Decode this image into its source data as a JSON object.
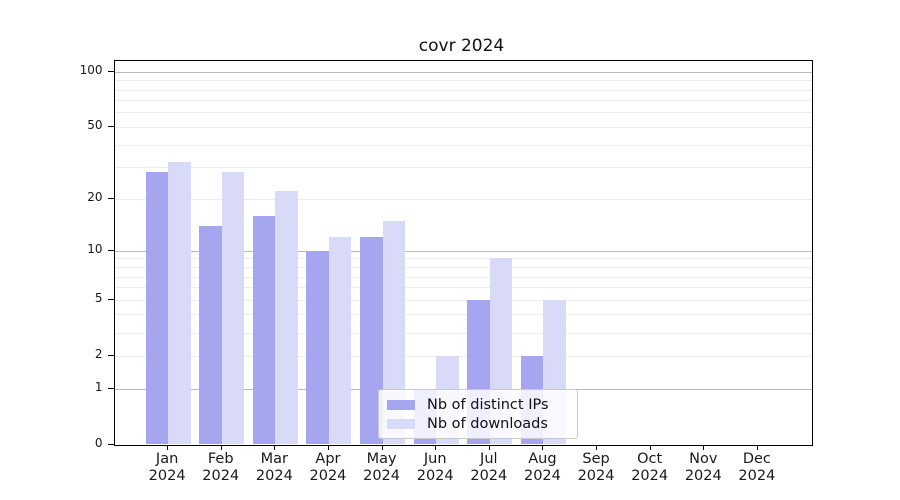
{
  "title": "covr 2024",
  "colors": {
    "distinct_ips": "#a6a6f0",
    "downloads": "#d9d9f8",
    "major_gridline": "#b9b9b9",
    "minor_gridline": "#ededed",
    "axis": "#000000"
  },
  "legend": {
    "items": [
      {
        "key": "distinct_ips",
        "label": "Nb of distinct IPs"
      },
      {
        "key": "downloads",
        "label": "Nb of downloads"
      }
    ]
  },
  "chart_data": {
    "type": "bar",
    "title": "covr 2024",
    "categories": [
      "Jan 2024",
      "Feb 2024",
      "Mar 2024",
      "Apr 2024",
      "May 2024",
      "Jun 2024",
      "Jul 2024",
      "Aug 2024",
      "Sep 2024",
      "Oct 2024",
      "Nov 2024",
      "Dec 2024"
    ],
    "series": [
      {
        "name": "Nb of distinct IPs",
        "color_key": "distinct_ips",
        "values": [
          28,
          14,
          16,
          10,
          12,
          1,
          5,
          2,
          0,
          0,
          0,
          0
        ]
      },
      {
        "name": "Nb of downloads",
        "color_key": "downloads",
        "values": [
          32,
          28,
          22,
          12,
          15,
          2,
          9,
          5,
          0,
          0,
          0,
          0
        ]
      }
    ],
    "xlabel": "",
    "ylabel": "",
    "y_scale": "log10(1+v)",
    "ylim": [
      0,
      115
    ],
    "y_ticks": [
      100,
      50,
      20,
      10,
      5,
      2,
      1,
      0
    ],
    "major_gridlines": [
      1,
      10,
      100
    ],
    "minor_gridlines": [
      2,
      3,
      4,
      5,
      6,
      7,
      8,
      9,
      20,
      30,
      40,
      50,
      60,
      70,
      80,
      90
    ],
    "grid": true,
    "legend_position": "lower center-right, inside plot"
  }
}
